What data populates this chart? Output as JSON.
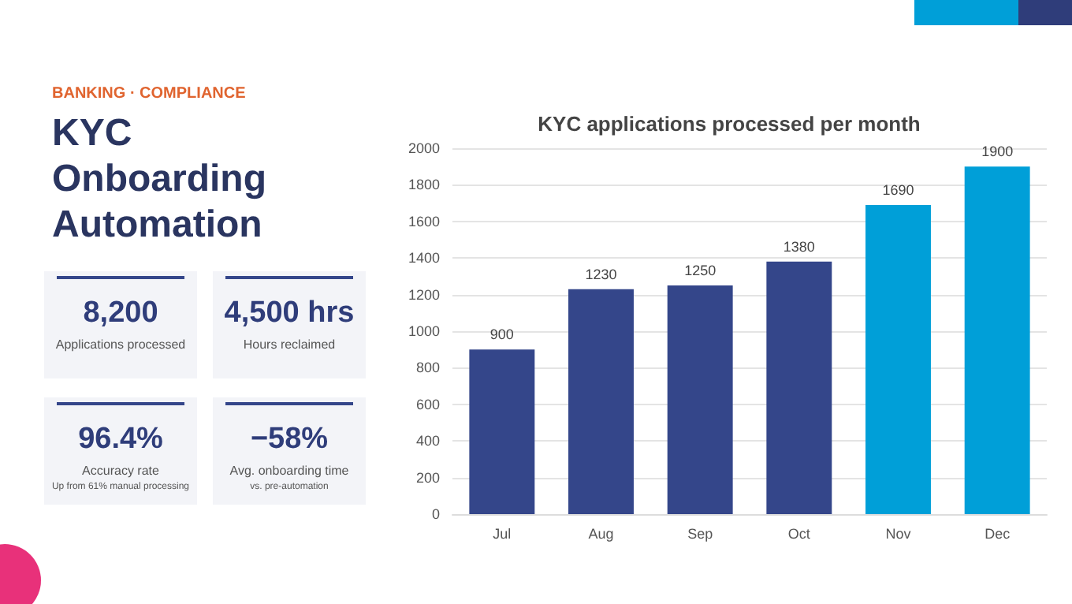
{
  "chart_data": [
    {
      "type": "other",
      "subtitle": "BANKING · COMPLIANCE",
      "title": "KYC Onboarding Automation",
      "annotations": [
        "8,200",
        "Applications processed",
        "4,500 hrs",
        "Hours reclaimed",
        "96.4%",
        "Accuracy rate",
        "Up from 61% manual processing",
        "−58%",
        "Avg. onboarding time",
        "vs. pre-automation"
      ]
    },
    {
      "type": "bar",
      "title": "KYC applications processed per month",
      "categories": [
        "Jul",
        "Aug",
        "Sep",
        "Oct",
        "Nov",
        "Dec"
      ],
      "values": [
        900,
        1230,
        1250,
        1380,
        1690,
        1900
      ],
      "colors": [
        "#34468a",
        "#34468a",
        "#34468a",
        "#34468a",
        "#009fd8",
        "#009fd8"
      ],
      "ylim": [
        0,
        2000
      ],
      "yticks": [
        0,
        200,
        400,
        600,
        800,
        1000,
        1200,
        1400,
        1600,
        1800,
        2000
      ],
      "grid": "y",
      "data_labels": true
    }
  ]
}
